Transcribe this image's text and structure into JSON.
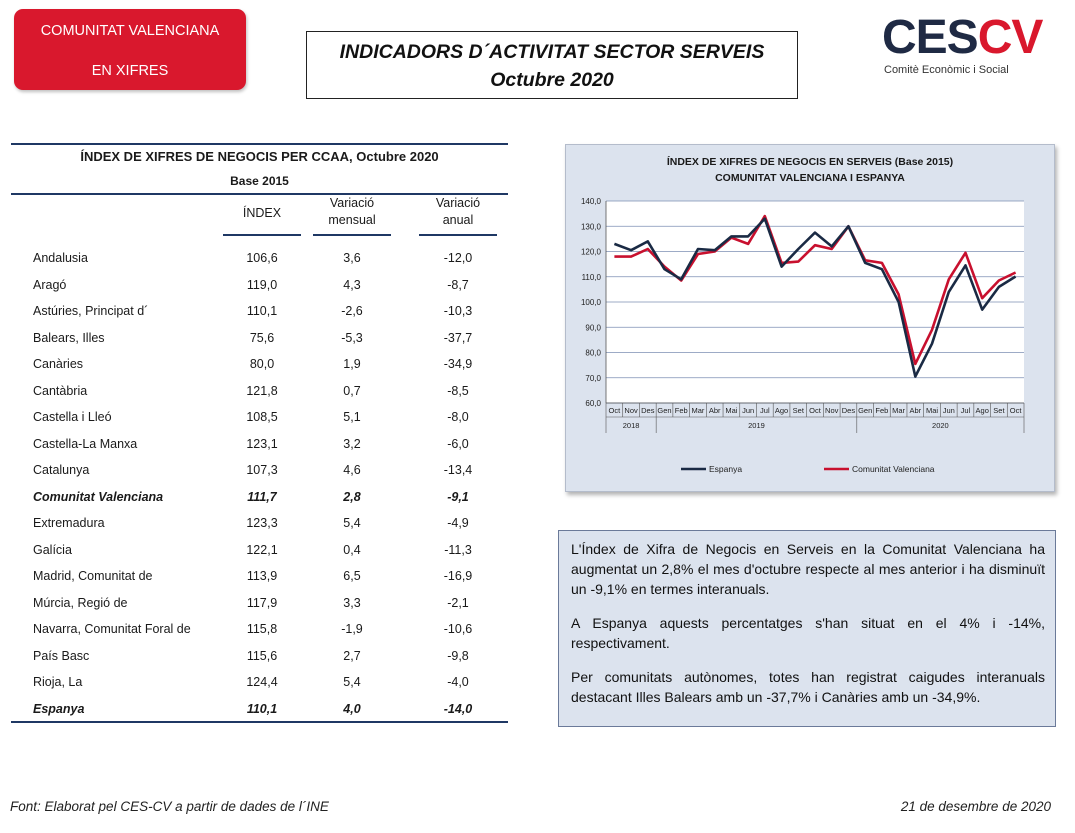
{
  "badge": {
    "line1": "COMUNITAT VALENCIANA",
    "line2": "EN XIFRES"
  },
  "report_title": {
    "line1": "INDICADORS D´ACTIVITAT SECTOR SERVEIS",
    "line2": "Octubre 2020"
  },
  "logo": {
    "part1": "CES",
    "part2": "CV",
    "subtitle": "Comitè Econòmic i Social"
  },
  "table": {
    "title": "ÍNDEX DE XIFRES DE NEGOCIS PER CCAA, Octubre 2020",
    "subtitle": "Base 2015",
    "columns": [
      "ÍNDEX",
      "Variació\nmensual",
      "Variació\nanual"
    ],
    "rows": [
      {
        "region": "Andalusia",
        "index": "106,6",
        "monthly": "3,6",
        "annual": "-12,0",
        "emphasis": false
      },
      {
        "region": "Aragó",
        "index": "119,0",
        "monthly": "4,3",
        "annual": "-8,7",
        "emphasis": false
      },
      {
        "region": "Astúries, Principat d´",
        "index": "110,1",
        "monthly": "-2,6",
        "annual": "-10,3",
        "emphasis": false
      },
      {
        "region": "Balears, Illes",
        "index": "75,6",
        "monthly": "-5,3",
        "annual": "-37,7",
        "emphasis": false
      },
      {
        "region": "Canàries",
        "index": "80,0",
        "monthly": "1,9",
        "annual": "-34,9",
        "emphasis": false
      },
      {
        "region": "Cantàbria",
        "index": "121,8",
        "monthly": "0,7",
        "annual": "-8,5",
        "emphasis": false
      },
      {
        "region": "Castella i Lleó",
        "index": "108,5",
        "monthly": "5,1",
        "annual": "-8,0",
        "emphasis": false
      },
      {
        "region": "Castella-La Manxa",
        "index": "123,1",
        "monthly": "3,2",
        "annual": "-6,0",
        "emphasis": false
      },
      {
        "region": "Catalunya",
        "index": "107,3",
        "monthly": "4,6",
        "annual": "-13,4",
        "emphasis": false
      },
      {
        "region": "Comunitat Valenciana",
        "index": "111,7",
        "monthly": "2,8",
        "annual": "-9,1",
        "emphasis": true
      },
      {
        "region": "Extremadura",
        "index": "123,3",
        "monthly": "5,4",
        "annual": "-4,9",
        "emphasis": false
      },
      {
        "region": "Galícia",
        "index": "122,1",
        "monthly": "0,4",
        "annual": "-11,3",
        "emphasis": false
      },
      {
        "region": "Madrid, Comunitat de",
        "index": "113,9",
        "monthly": "6,5",
        "annual": "-16,9",
        "emphasis": false
      },
      {
        "region": "Múrcia, Regió de",
        "index": "117,9",
        "monthly": "3,3",
        "annual": "-2,1",
        "emphasis": false
      },
      {
        "region": "Navarra, Comunitat Foral de",
        "index": "115,8",
        "monthly": "-1,9",
        "annual": "-10,6",
        "emphasis": false
      },
      {
        "region": "País Basc",
        "index": "115,6",
        "monthly": "2,7",
        "annual": "-9,8",
        "emphasis": false
      },
      {
        "region": "Rioja, La",
        "index": "124,4",
        "monthly": "5,4",
        "annual": "-4,0",
        "emphasis": false
      },
      {
        "region": "Espanya",
        "index": "110,1",
        "monthly": "4,0",
        "annual": "-14,0",
        "emphasis": true
      }
    ]
  },
  "chart_data": {
    "type": "line",
    "title": "ÍNDEX DE XIFRES DE NEGOCIS EN SERVEIS (Base 2015)",
    "subtitle": "COMUNITAT VALENCIANA I ESPANYA",
    "categories": [
      "Oct",
      "Nov",
      "Des",
      "Gen",
      "Feb",
      "Mar",
      "Abr",
      "Mai",
      "Jun",
      "Jul",
      "Ago",
      "Set",
      "Oct",
      "Nov",
      "Des",
      "Gen",
      "Feb",
      "Mar",
      "Abr",
      "Mai",
      "Jun",
      "Jul",
      "Ago",
      "Set",
      "Oct"
    ],
    "year_groups": [
      {
        "label": "2018",
        "count": 3
      },
      {
        "label": "2019",
        "count": 12
      },
      {
        "label": "2020",
        "count": 10
      }
    ],
    "ylim": [
      60,
      140
    ],
    "yticks": [
      "60,0",
      "70,0",
      "80,0",
      "90,0",
      "100,0",
      "110,0",
      "120,0",
      "130,0",
      "140,0"
    ],
    "grid": true,
    "legend": "bottom",
    "series": [
      {
        "name": "Espanya",
        "color": "#1a2a44",
        "values": [
          123.0,
          120.5,
          124.0,
          113.0,
          109.0,
          121.0,
          120.5,
          126.0,
          126.0,
          133.0,
          114.0,
          121.0,
          127.5,
          122.0,
          130.0,
          115.5,
          113.0,
          100.0,
          70.5,
          83.5,
          104.0,
          114.5,
          97.0,
          106.0,
          110.1
        ]
      },
      {
        "name": "Comunitat Valenciana",
        "color": "#c8102e",
        "values": [
          118.0,
          118.0,
          121.0,
          114.0,
          108.5,
          119.0,
          120.0,
          125.5,
          123.0,
          134.0,
          115.5,
          116.0,
          122.5,
          121.0,
          130.0,
          116.5,
          115.5,
          103.0,
          75.5,
          89.0,
          109.0,
          119.5,
          101.5,
          108.5,
          111.7
        ]
      }
    ]
  },
  "summary": {
    "p1": "L'Índex de Xifra de Negocis en Serveis en la Comunitat Valenciana ha augmentat un 2,8% el mes d'octubre respecte al mes anterior i ha disminuït un -9,1% en termes interanuals.",
    "p2": "A Espanya aquests percentatges s'han situat en el 4% i -14%, respectivament.",
    "p3": "Per comunitats autònomes, totes han registrat caigudes interanuals destacant Illes Balears amb un -37,7% i Canàries amb un -34,9%."
  },
  "footer": {
    "source": "Font: Elaborat pel CES-CV a partir de dades de l´INE",
    "date": "21 de desembre de 2020"
  }
}
